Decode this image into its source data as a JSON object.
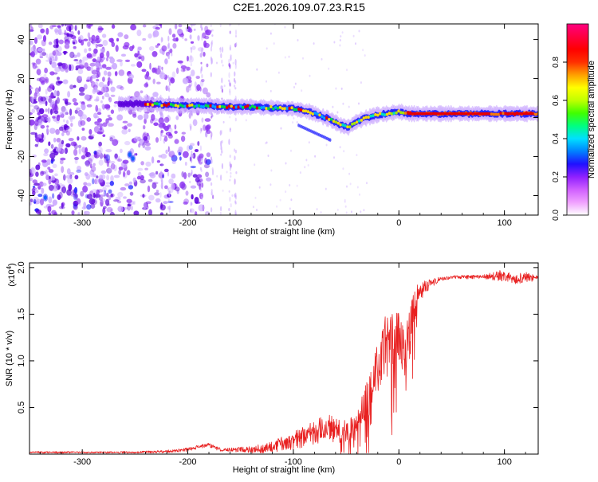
{
  "figure_title": "C2E1.2026.109.07.23.R15",
  "colors": {
    "snr_line": "#e82020",
    "spectrum_palette": [
      "#ffffff",
      "#c9a6ff",
      "#8a30f0",
      "#5b00dc",
      "#1a1aff",
      "#00a8ff",
      "#00e8c0",
      "#00e040",
      "#a8f000",
      "#ffe000",
      "#ff8000",
      "#e80000"
    ],
    "colorbar_stops": [
      "#ffffff",
      "#f0a0ff",
      "#d060ff",
      "#9020ff",
      "#2010ff",
      "#0080ff",
      "#00e0ff",
      "#00ff80",
      "#40ff00",
      "#c0ff00",
      "#ffff00",
      "#ffa000",
      "#ff3000",
      "#ff0000",
      "#ff0040",
      "#ff0080"
    ]
  },
  "chart_data": [
    {
      "type": "heatmap",
      "name": "spectrogram",
      "title": "C2E1.2026.109.07.23.R15",
      "xlabel": "Height of straight line (km)",
      "ylabel": "Frequency (Hz)",
      "xlim": [
        -350,
        132
      ],
      "ylim": [
        -50,
        48
      ],
      "x_ticks": [
        -300,
        -200,
        -100,
        0,
        100
      ],
      "y_ticks": [
        -40,
        -20,
        0,
        20,
        40
      ],
      "ridge": {
        "x": [
          -265,
          -240,
          -220,
          -200,
          -180,
          -160,
          -140,
          -120,
          -100,
          -85,
          -75,
          -65,
          -55,
          -48,
          -40,
          -30,
          -20,
          -10,
          0,
          10,
          50,
          90,
          100,
          132
        ],
        "freq_hz": [
          7,
          7,
          6.5,
          6,
          6,
          5.5,
          5.5,
          5,
          4.5,
          3,
          1,
          -1,
          -4,
          -5,
          -2,
          0,
          1.5,
          2,
          3,
          2,
          2,
          2,
          2,
          2
        ]
      },
      "colorbar": {
        "label": "Normalized spectral amplitude",
        "range": [
          0,
          1
        ],
        "ticks": [
          "0.0",
          "0.2",
          "0.4",
          "0.6",
          "0.8"
        ],
        "tick_values": [
          0,
          0.2,
          0.4,
          0.6,
          0.8
        ]
      }
    },
    {
      "type": "line",
      "name": "snr",
      "xlabel": "Height of straight line (km)",
      "ylabel": "SNR (10 * v/v)",
      "multiplier_label": "(x10",
      "multiplier_exp": "4",
      "xlim": [
        -350,
        132
      ],
      "ylim": [
        0,
        2.05
      ],
      "x_ticks": [
        -300,
        -200,
        -100,
        0,
        100
      ],
      "y_ticks": [
        0.5,
        1.0,
        1.5,
        2.0
      ],
      "y_tick_labels": [
        "0.5",
        "1.0",
        "1.5",
        "2.0"
      ],
      "envelope": {
        "x": [
          -350,
          -250,
          -220,
          -200,
          -190,
          -180,
          -170,
          -150,
          -130,
          -110,
          -90,
          -70,
          -50,
          -40,
          -35,
          -30,
          -25,
          -20,
          -15,
          -10,
          -5,
          0,
          5,
          10,
          15,
          20,
          25,
          30,
          35,
          40,
          50,
          70,
          90,
          100,
          110,
          120,
          132
        ],
        "y": [
          0.02,
          0.02,
          0.03,
          0.05,
          0.08,
          0.1,
          0.05,
          0.05,
          0.06,
          0.12,
          0.2,
          0.3,
          0.25,
          0.3,
          0.5,
          0.6,
          0.7,
          1.0,
          1.15,
          1.2,
          1.25,
          1.35,
          1.1,
          1.25,
          1.65,
          1.75,
          1.8,
          1.83,
          1.86,
          1.88,
          1.9,
          1.9,
          1.91,
          1.92,
          1.88,
          1.9,
          1.89
        ]
      },
      "noise_amplitude": {
        "x": [
          -350,
          -250,
          -200,
          -160,
          -130,
          -100,
          -70,
          -50,
          -40,
          -30,
          -20,
          -10,
          0,
          10,
          20,
          30,
          40,
          80,
          95,
          110,
          120,
          132
        ],
        "amp": [
          0.01,
          0.01,
          0.02,
          0.02,
          0.05,
          0.1,
          0.15,
          0.12,
          0.15,
          0.2,
          0.3,
          0.35,
          0.3,
          0.3,
          0.1,
          0.05,
          0.02,
          0.02,
          0.06,
          0.05,
          0.06,
          0.02
        ]
      }
    }
  ]
}
